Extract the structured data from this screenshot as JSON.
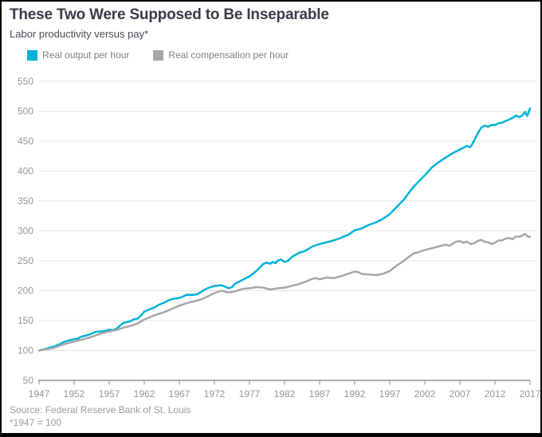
{
  "header": {
    "title": "These Two Were Supposed to Be Inseparable",
    "subtitle": "Labor productivity versus pay*"
  },
  "footer": {
    "source": "Source: Federal Reserve Bank of St. Louis",
    "footnote": "*1947 = 100"
  },
  "colors": {
    "output_line": "#00b2d9",
    "compensation_line": "#a6a6ac",
    "gridline": "#e6e6e9",
    "axis": "#8f9096",
    "tick_label": "#95969c"
  },
  "chart_data": {
    "type": "line",
    "title": "These Two Were Supposed to Be Inseparable",
    "subtitle": "Labor productivity versus pay*",
    "xlabel": "",
    "ylabel": "",
    "xlim": [
      1947,
      2017
    ],
    "ylim": [
      50,
      550
    ],
    "x_ticks": [
      1947,
      1952,
      1957,
      1962,
      1967,
      1972,
      1977,
      1982,
      1987,
      1992,
      1997,
      2002,
      2007,
      2012,
      2017
    ],
    "y_ticks": [
      50,
      100,
      150,
      200,
      250,
      300,
      350,
      400,
      450,
      500,
      550
    ],
    "grid": "horizontal",
    "legend_position": "top",
    "series": [
      {
        "name": "Real output per hour",
        "color": "#00b2d9",
        "points": [
          [
            1947,
            100
          ],
          [
            1948,
            103
          ],
          [
            1948.5,
            105
          ],
          [
            1949,
            106
          ],
          [
            1950,
            111
          ],
          [
            1950.5,
            114
          ],
          [
            1951,
            116
          ],
          [
            1952,
            119
          ],
          [
            1952.5,
            120
          ],
          [
            1953,
            123
          ],
          [
            1954,
            126
          ],
          [
            1954.5,
            128
          ],
          [
            1955,
            131
          ],
          [
            1956,
            132
          ],
          [
            1956.5,
            133
          ],
          [
            1957,
            135
          ],
          [
            1957.5,
            134
          ],
          [
            1958,
            136
          ],
          [
            1958.5,
            141
          ],
          [
            1959,
            146
          ],
          [
            1960,
            149
          ],
          [
            1960.5,
            152
          ],
          [
            1961,
            153
          ],
          [
            1961.5,
            158
          ],
          [
            1962,
            165
          ],
          [
            1963,
            170
          ],
          [
            1963.5,
            172
          ],
          [
            1964,
            176
          ],
          [
            1965,
            181
          ],
          [
            1965.5,
            184
          ],
          [
            1966,
            186
          ],
          [
            1967,
            188
          ],
          [
            1967.5,
            190
          ],
          [
            1968,
            193
          ],
          [
            1969,
            193
          ],
          [
            1969.5,
            194
          ],
          [
            1970,
            197
          ],
          [
            1970.5,
            201
          ],
          [
            1971,
            204
          ],
          [
            1971.5,
            206
          ],
          [
            1972,
            208
          ],
          [
            1973,
            209
          ],
          [
            1973.5,
            207
          ],
          [
            1974,
            204
          ],
          [
            1974.5,
            206
          ],
          [
            1975,
            212
          ],
          [
            1976,
            218
          ],
          [
            1976.5,
            221
          ],
          [
            1977,
            224
          ],
          [
            1978,
            233
          ],
          [
            1979,
            245
          ],
          [
            1979.5,
            247
          ],
          [
            1980,
            245
          ],
          [
            1980.3,
            248
          ],
          [
            1980.7,
            246
          ],
          [
            1981,
            250
          ],
          [
            1981.5,
            252
          ],
          [
            1982,
            248
          ],
          [
            1982.5,
            250
          ],
          [
            1983,
            256
          ],
          [
            1984,
            263
          ],
          [
            1984.5,
            265
          ],
          [
            1985,
            267
          ],
          [
            1986,
            274
          ],
          [
            1986.5,
            276
          ],
          [
            1987,
            278
          ],
          [
            1988,
            281
          ],
          [
            1989,
            284
          ],
          [
            1990,
            288
          ],
          [
            1990.5,
            291
          ],
          [
            1991,
            293
          ],
          [
            1992,
            301
          ],
          [
            1993,
            304
          ],
          [
            1994,
            310
          ],
          [
            1995,
            314
          ],
          [
            1996,
            320
          ],
          [
            1997,
            328
          ],
          [
            1998,
            340
          ],
          [
            1999,
            352
          ],
          [
            2000,
            368
          ],
          [
            2000.5,
            375
          ],
          [
            2001,
            381
          ],
          [
            2002,
            393
          ],
          [
            2003,
            406
          ],
          [
            2004,
            415
          ],
          [
            2004.5,
            419
          ],
          [
            2005,
            423
          ],
          [
            2006,
            430
          ],
          [
            2007,
            436
          ],
          [
            2007.5,
            439
          ],
          [
            2008,
            442
          ],
          [
            2008.5,
            440
          ],
          [
            2009,
            450
          ],
          [
            2009.5,
            462
          ],
          [
            2010,
            472
          ],
          [
            2010.5,
            476
          ],
          [
            2011,
            474
          ],
          [
            2011.5,
            477
          ],
          [
            2012,
            477
          ],
          [
            2012.5,
            480
          ],
          [
            2013,
            481
          ],
          [
            2014,
            486
          ],
          [
            2014.5,
            489
          ],
          [
            2015,
            493
          ],
          [
            2015.5,
            490
          ],
          [
            2016,
            494
          ],
          [
            2016.3,
            499
          ],
          [
            2016.6,
            492
          ],
          [
            2017,
            505
          ]
        ]
      },
      {
        "name": "Real compensation per hour",
        "color": "#a6a6ac",
        "points": [
          [
            1947,
            100
          ],
          [
            1948,
            102
          ],
          [
            1949,
            104
          ],
          [
            1950,
            108
          ],
          [
            1951,
            112
          ],
          [
            1952,
            115
          ],
          [
            1953,
            118
          ],
          [
            1954,
            121
          ],
          [
            1955,
            125
          ],
          [
            1956,
            129
          ],
          [
            1957,
            132
          ],
          [
            1958,
            134
          ],
          [
            1959,
            138
          ],
          [
            1960,
            141
          ],
          [
            1961,
            145
          ],
          [
            1962,
            152
          ],
          [
            1962.5,
            154
          ],
          [
            1963,
            157
          ],
          [
            1964,
            161
          ],
          [
            1965,
            165
          ],
          [
            1966,
            170
          ],
          [
            1967,
            175
          ],
          [
            1968,
            179
          ],
          [
            1969,
            182
          ],
          [
            1970,
            185
          ],
          [
            1971,
            190
          ],
          [
            1972,
            196
          ],
          [
            1972.5,
            198
          ],
          [
            1973,
            200
          ],
          [
            1974,
            197
          ],
          [
            1975,
            199
          ],
          [
            1976,
            203
          ],
          [
            1977,
            204
          ],
          [
            1978,
            206
          ],
          [
            1979,
            205
          ],
          [
            1980,
            202
          ],
          [
            1981,
            204
          ],
          [
            1982,
            205
          ],
          [
            1983,
            208
          ],
          [
            1984,
            211
          ],
          [
            1984.5,
            213
          ],
          [
            1985,
            215
          ],
          [
            1986,
            220
          ],
          [
            1986.5,
            221
          ],
          [
            1987,
            219
          ],
          [
            1988,
            222
          ],
          [
            1989,
            221
          ],
          [
            1990,
            224
          ],
          [
            1991,
            228
          ],
          [
            1992,
            232
          ],
          [
            1992.5,
            231
          ],
          [
            1993,
            228
          ],
          [
            1994,
            227
          ],
          [
            1995,
            226
          ],
          [
            1996,
            228
          ],
          [
            1997,
            233
          ],
          [
            1998,
            242
          ],
          [
            1999,
            250
          ],
          [
            2000,
            259
          ],
          [
            2000.5,
            263
          ],
          [
            2001,
            264
          ],
          [
            2002,
            268
          ],
          [
            2003,
            271
          ],
          [
            2004,
            274
          ],
          [
            2005,
            277
          ],
          [
            2005.5,
            275
          ],
          [
            2006,
            279
          ],
          [
            2006.5,
            282
          ],
          [
            2007,
            283
          ],
          [
            2007.5,
            280
          ],
          [
            2008,
            282
          ],
          [
            2008.5,
            278
          ],
          [
            2009,
            279
          ],
          [
            2009.5,
            283
          ],
          [
            2010,
            285
          ],
          [
            2010.5,
            282
          ],
          [
            2011,
            281
          ],
          [
            2011.5,
            278
          ],
          [
            2012,
            280
          ],
          [
            2012.5,
            284
          ],
          [
            2013,
            284
          ],
          [
            2013.5,
            287
          ],
          [
            2014,
            288
          ],
          [
            2014.5,
            286
          ],
          [
            2015,
            291
          ],
          [
            2015.5,
            290
          ],
          [
            2016,
            293
          ],
          [
            2016.3,
            295
          ],
          [
            2016.6,
            291
          ],
          [
            2017,
            290
          ]
        ]
      }
    ]
  }
}
